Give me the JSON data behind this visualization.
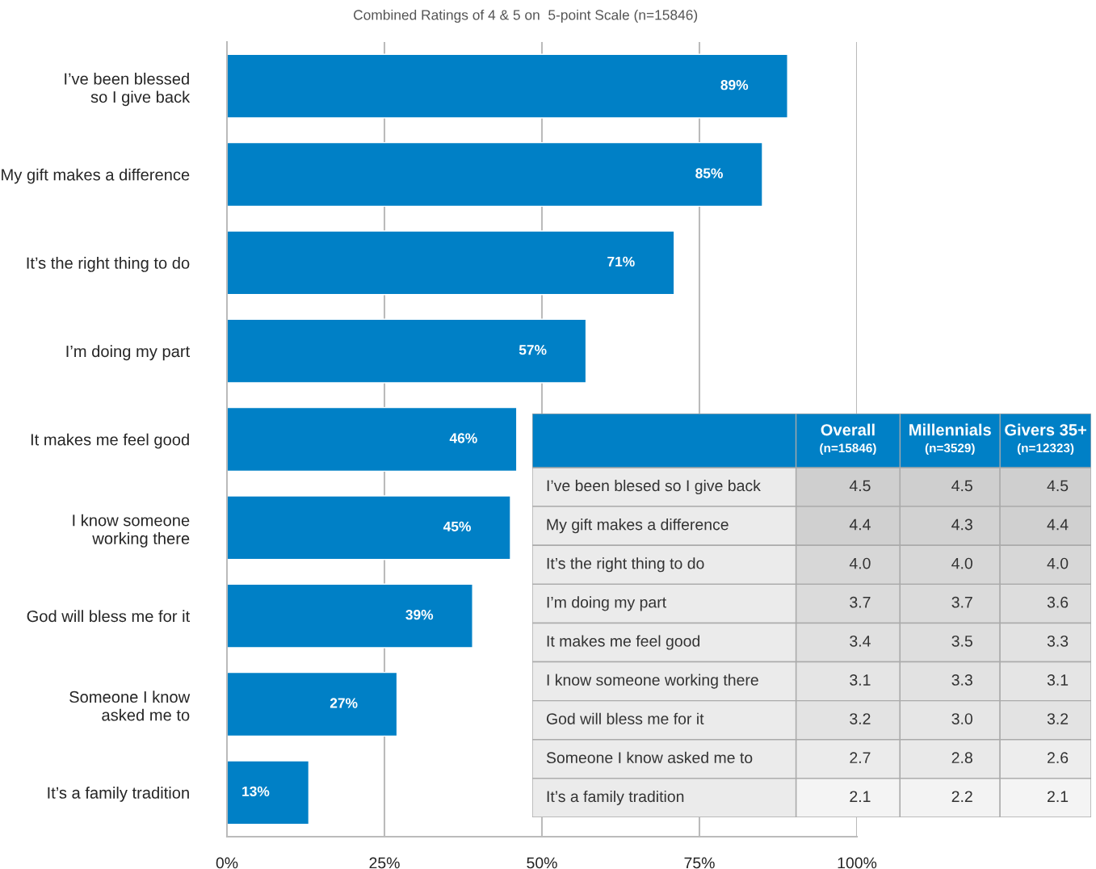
{
  "chart_data": [
    {
      "type": "bar",
      "orientation": "horizontal",
      "title": "Combined Ratings of 4 & 5 on  5-point Scale (n=15846)",
      "categories": [
        "I’ve been blessed\nso I give back",
        "My gift makes a difference",
        "It’s the right thing to do",
        "I’m doing my part",
        "It makes me feel good",
        "I know someone\nworking there",
        "God will bless me for it",
        "Someone I know\nasked me to",
        "It’s a family tradition"
      ],
      "values": [
        89,
        85,
        71,
        57,
        46,
        45,
        39,
        27,
        13
      ],
      "value_labels": [
        "89%",
        "85%",
        "71%",
        "57%",
        "46%",
        "45%",
        "39%",
        "27%",
        "13%"
      ],
      "color": "#0080c6",
      "xlim": [
        0,
        100
      ],
      "xticks": [
        {
          "value": 0,
          "label": "0%"
        },
        {
          "value": 25,
          "label": "25%"
        },
        {
          "value": 50,
          "label": "50%"
        },
        {
          "value": 75,
          "label": "75%"
        },
        {
          "value": 100,
          "label": "100%"
        }
      ],
      "grid": "x",
      "legend": false
    },
    {
      "type": "heatmap",
      "color": "#ebebeb",
      "categories": [
        "Overall\n(n=15846)",
        "Millennials\n(n=3529)",
        "Givers 35+\n(n=12323)"
      ],
      "y_categories": [
        "I’ve been blesed so I give back",
        "My gift makes a difference",
        "It’s the right thing to do",
        "I’m doing my part",
        "It makes me feel good",
        "I know someone working there",
        "God will bless me for it",
        "Someone I know asked me to",
        "It’s a family tradition"
      ],
      "cells": [
        [
          4.5,
          4.5,
          4.5
        ],
        [
          4.4,
          4.3,
          4.4
        ],
        [
          4.0,
          4.0,
          4.0
        ],
        [
          3.7,
          3.7,
          3.6
        ],
        [
          3.4,
          3.5,
          3.3
        ],
        [
          3.1,
          3.3,
          3.1
        ],
        [
          3.2,
          3.0,
          3.2
        ],
        [
          2.7,
          2.8,
          2.6
        ],
        [
          2.1,
          2.2,
          2.1
        ]
      ],
      "cell_labels": [
        [
          "4.5",
          "4.5",
          "4.5"
        ],
        [
          "4.4",
          "4.3",
          "4.4"
        ],
        [
          "4.0",
          "4.0",
          "4.0"
        ],
        [
          "3.7",
          "3.7",
          "3.6"
        ],
        [
          "3.4",
          "3.5",
          "3.3"
        ],
        [
          "3.1",
          "3.3",
          "3.1"
        ],
        [
          "3.2",
          "3.0",
          "3.2"
        ],
        [
          "2.7",
          "2.8",
          "2.6"
        ],
        [
          "2.1",
          "2.2",
          "2.1"
        ]
      ]
    }
  ]
}
